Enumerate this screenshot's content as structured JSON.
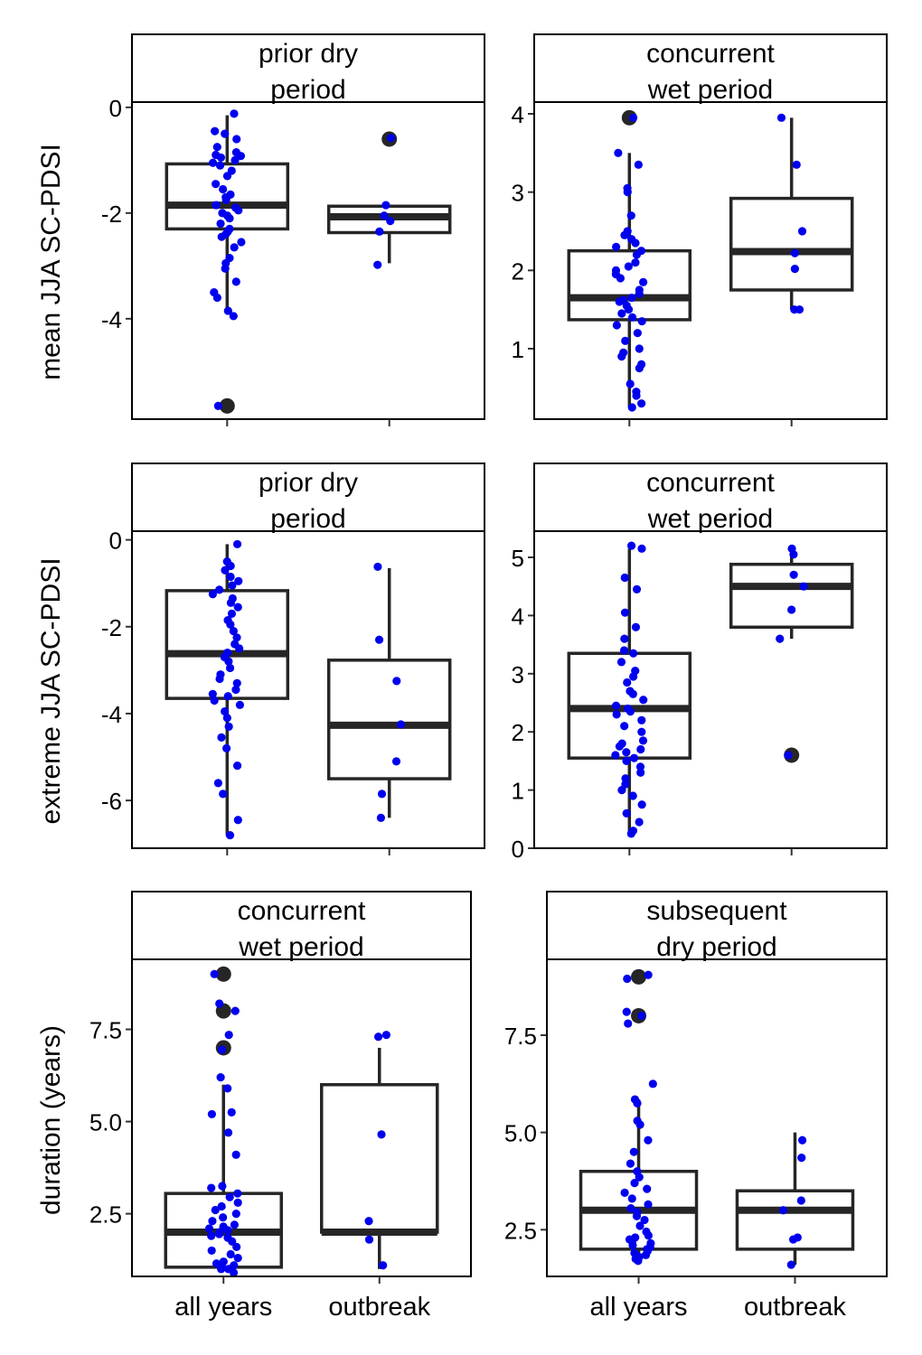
{
  "figure": {
    "row_labels": [
      "mean JJA SC-PDSI",
      "extreme JJA SC-PDSI",
      "duration (years)"
    ]
  },
  "chart_data": [
    {
      "type": "box",
      "row": 0,
      "col": 0,
      "strip": [
        "prior dry",
        "period"
      ],
      "ylabel": "mean JJA SC-PDSI",
      "ylim": [
        -5.9,
        0.1
      ],
      "yticks": [
        0,
        -2,
        -4
      ],
      "ytick_labels": [
        "0",
        "-2",
        "-4"
      ],
      "categories": [
        "all years",
        "outbreak"
      ],
      "xtick_labels": [
        "",
        ""
      ],
      "boxes": [
        {
          "q1": -2.3,
          "median": -1.85,
          "q3": -1.07,
          "whisker_low": -3.9,
          "whisker_high": -0.15,
          "outliers": [
            -5.65
          ]
        },
        {
          "q1": -2.37,
          "median": -2.07,
          "q3": -1.87,
          "whisker_low": -2.95,
          "whisker_high": -1.87,
          "outliers": [
            -0.6
          ]
        }
      ],
      "points": [
        [
          -0.12,
          -0.45,
          -0.5,
          -0.6,
          -0.75,
          -0.85,
          -0.9,
          -0.92,
          -0.95,
          -1.0,
          -1.05,
          -1.1,
          -1.2,
          -1.3,
          -1.45,
          -1.55,
          -1.65,
          -1.7,
          -1.75,
          -1.85,
          -1.9,
          -1.95,
          -2.0,
          -2.05,
          -2.1,
          -2.2,
          -2.3,
          -2.35,
          -2.4,
          -2.45,
          -2.55,
          -2.65,
          -2.85,
          -2.95,
          -3.05,
          -3.3,
          -3.5,
          -3.6,
          -3.85,
          -3.95,
          -5.65
        ],
        [
          -0.58,
          -1.85,
          -2.05,
          -2.15,
          -2.35,
          -2.98
        ]
      ]
    },
    {
      "type": "box",
      "row": 0,
      "col": 1,
      "strip": [
        "concurrent",
        "wet period"
      ],
      "ylabel": "",
      "ylim": [
        0.1,
        4.15
      ],
      "yticks": [
        1,
        2,
        3,
        4
      ],
      "ytick_labels": [
        "1",
        "2",
        "3",
        "4"
      ],
      "categories": [
        "all years",
        "outbreak"
      ],
      "xtick_labels": [
        "",
        ""
      ],
      "boxes": [
        {
          "q1": 1.37,
          "median": 1.65,
          "q3": 2.25,
          "whisker_low": 0.25,
          "whisker_high": 3.5,
          "outliers": [
            3.95
          ]
        },
        {
          "q1": 1.75,
          "median": 2.24,
          "q3": 2.92,
          "whisker_low": 1.5,
          "whisker_high": 3.95,
          "outliers": []
        }
      ],
      "points": [
        [
          0.25,
          0.3,
          0.4,
          0.45,
          0.55,
          0.75,
          0.8,
          0.9,
          0.95,
          1.0,
          1.1,
          1.2,
          1.3,
          1.35,
          1.4,
          1.45,
          1.5,
          1.55,
          1.6,
          1.62,
          1.65,
          1.7,
          1.75,
          1.85,
          1.9,
          1.95,
          2.0,
          2.05,
          2.1,
          2.2,
          2.25,
          2.3,
          2.35,
          2.4,
          2.45,
          2.5,
          2.7,
          3.0,
          3.05,
          3.35,
          3.5,
          3.95
        ],
        [
          1.5,
          1.5,
          2.02,
          2.22,
          2.5,
          3.35,
          3.95
        ]
      ]
    },
    {
      "type": "box",
      "row": 1,
      "col": 0,
      "strip": [
        "prior dry",
        "period"
      ],
      "ylabel": "extreme JJA SC-PDSI",
      "ylim": [
        -7.1,
        0.2
      ],
      "yticks": [
        0,
        -2,
        -4,
        -6
      ],
      "ytick_labels": [
        "0",
        "-2",
        "-4",
        "-6"
      ],
      "categories": [
        "all years",
        "outbreak"
      ],
      "xtick_labels": [
        "",
        ""
      ],
      "boxes": [
        {
          "q1": -3.65,
          "median": -2.62,
          "q3": -1.17,
          "whisker_low": -6.8,
          "whisker_high": -0.1,
          "outliers": []
        },
        {
          "q1": -5.5,
          "median": -4.27,
          "q3": -2.77,
          "whisker_low": -6.4,
          "whisker_high": -0.65,
          "outliers": []
        }
      ],
      "points": [
        [
          -0.1,
          -0.5,
          -0.6,
          -0.7,
          -0.85,
          -0.95,
          -1.05,
          -1.15,
          -1.25,
          -1.35,
          -1.45,
          -1.55,
          -1.7,
          -1.85,
          -1.95,
          -2.1,
          -2.25,
          -2.4,
          -2.5,
          -2.6,
          -2.7,
          -2.8,
          -2.95,
          -3.1,
          -3.2,
          -3.3,
          -3.45,
          -3.55,
          -3.6,
          -3.7,
          -3.8,
          -3.95,
          -4.1,
          -4.3,
          -4.55,
          -4.8,
          -5.2,
          -5.6,
          -5.85,
          -6.45,
          -6.8
        ],
        [
          -0.62,
          -2.3,
          -3.25,
          -4.25,
          -5.1,
          -5.85,
          -6.4
        ]
      ]
    },
    {
      "type": "box",
      "row": 1,
      "col": 1,
      "strip": [
        "concurrent",
        "wet period"
      ],
      "ylabel": "",
      "ylim": [
        0,
        5.45
      ],
      "yticks": [
        0,
        1,
        2,
        3,
        4,
        5
      ],
      "ytick_labels": [
        "0",
        "1",
        "2",
        "3",
        "4",
        "5"
      ],
      "categories": [
        "all years",
        "outbreak"
      ],
      "xtick_labels": [
        "",
        ""
      ],
      "boxes": [
        {
          "q1": 1.55,
          "median": 2.4,
          "q3": 3.35,
          "whisker_low": 0.2,
          "whisker_high": 5.15,
          "outliers": []
        },
        {
          "q1": 3.8,
          "median": 4.5,
          "q3": 4.88,
          "whisker_low": 3.6,
          "whisker_high": 5.15,
          "outliers": [
            1.6
          ]
        }
      ],
      "points": [
        [
          0.25,
          0.3,
          0.45,
          0.6,
          0.75,
          0.9,
          1.0,
          1.1,
          1.2,
          1.3,
          1.4,
          1.5,
          1.55,
          1.6,
          1.65,
          1.7,
          1.75,
          1.8,
          1.85,
          2.0,
          2.1,
          2.2,
          2.3,
          2.35,
          2.4,
          2.45,
          2.55,
          2.65,
          2.7,
          2.85,
          2.95,
          3.05,
          3.2,
          3.35,
          3.4,
          3.6,
          3.8,
          4.05,
          4.45,
          4.65,
          5.15,
          5.2
        ],
        [
          1.6,
          3.6,
          4.1,
          4.5,
          4.7,
          5.05,
          5.15
        ]
      ]
    },
    {
      "type": "box",
      "row": 2,
      "col": 0,
      "strip": [
        "concurrent",
        "wet period"
      ],
      "ylabel": "duration (years)",
      "ylim": [
        0.8,
        9.4
      ],
      "yticks": [
        2.5,
        5.0,
        7.5
      ],
      "ytick_labels": [
        "2.5",
        "5.0",
        "7.5"
      ],
      "categories": [
        "all years",
        "outbreak"
      ],
      "xtick_labels": [
        "all years",
        "outbreak"
      ],
      "boxes": [
        {
          "q1": 1.05,
          "median": 2.0,
          "q3": 3.05,
          "whisker_low": 1.0,
          "whisker_high": 6.0,
          "outliers": [
            7.0,
            8.0,
            9.0
          ]
        },
        {
          "q1": 2.0,
          "median": 2.0,
          "q3": 6.0,
          "whisker_low": 1.0,
          "whisker_high": 7.0,
          "outliers": []
        }
      ],
      "points": [
        [
          0.9,
          1.0,
          1.0,
          1.05,
          1.1,
          1.15,
          1.2,
          1.3,
          1.4,
          1.5,
          1.6,
          1.75,
          1.85,
          1.9,
          1.95,
          2.0,
          2.05,
          2.1,
          2.15,
          2.2,
          2.3,
          2.4,
          2.5,
          2.6,
          2.7,
          2.8,
          2.95,
          3.05,
          3.2,
          3.25,
          4.1,
          4.7,
          5.2,
          5.25,
          5.9,
          6.2,
          6.95,
          7.35,
          8.0,
          8.2,
          9.0
        ],
        [
          1.1,
          1.8,
          2.3,
          4.65,
          7.3,
          7.35
        ]
      ]
    },
    {
      "type": "box",
      "row": 2,
      "col": 1,
      "strip": [
        "subsequent",
        "dry period"
      ],
      "ylabel": "",
      "ylim": [
        1.3,
        9.45
      ],
      "yticks": [
        2.5,
        5.0,
        7.5
      ],
      "ytick_labels": [
        "2.5",
        "5.0",
        "7.5"
      ],
      "categories": [
        "all years",
        "outbreak"
      ],
      "xtick_labels": [
        "all years",
        "outbreak"
      ],
      "boxes": [
        {
          "q1": 2.0,
          "median": 3.0,
          "q3": 4.0,
          "whisker_low": 1.8,
          "whisker_high": 5.85,
          "outliers": [
            8.0,
            9.0
          ]
        },
        {
          "q1": 2.0,
          "median": 3.0,
          "q3": 3.5,
          "whisker_low": 1.6,
          "whisker_high": 5.0,
          "outliers": []
        }
      ],
      "points": [
        [
          1.7,
          1.75,
          1.8,
          1.85,
          1.9,
          1.95,
          2.0,
          2.05,
          2.1,
          2.15,
          2.2,
          2.25,
          2.3,
          2.35,
          2.45,
          2.6,
          2.75,
          2.85,
          2.95,
          3.05,
          3.15,
          3.3,
          3.45,
          3.55,
          3.7,
          3.85,
          4.0,
          4.2,
          4.5,
          4.8,
          5.2,
          5.3,
          5.75,
          5.85,
          6.25,
          7.8,
          8.0,
          8.1,
          8.95,
          9.05
        ],
        [
          1.6,
          2.25,
          2.3,
          3.0,
          3.25,
          4.35,
          4.8
        ]
      ]
    }
  ]
}
